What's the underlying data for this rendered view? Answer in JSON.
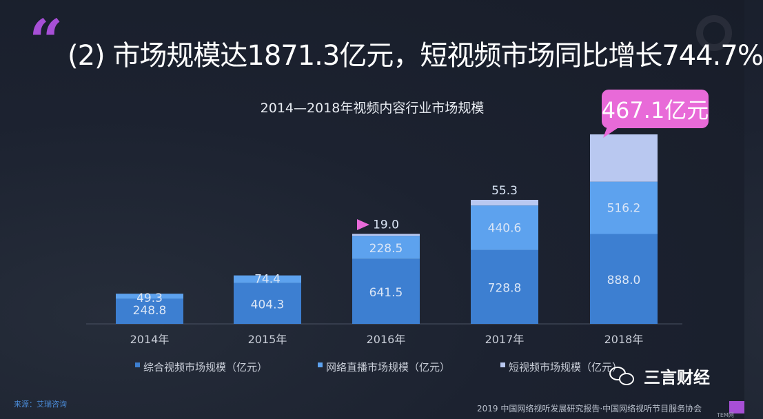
{
  "headline": "(2) 市场规模达1871.3亿元，短视频市场同比增长744.7%",
  "quote_mark": "“",
  "callout": "467.1亿元",
  "watermark": {
    "icon": "wechat-icon",
    "text": "三言财经"
  },
  "source_left": "来源：艾瑞咨询",
  "source_right": "2019 中国网络视听发展研究报告·中国网络视听节目服务协会",
  "corner_tag": "TEM网",
  "colors": {
    "series1": "#3d7fd1",
    "series2": "#5da2ee",
    "series3": "#b9c8f0",
    "callout": "#e86ad8",
    "accent": "#a74fd6"
  },
  "chart_data": {
    "type": "bar",
    "stacked": true,
    "title": "2014—2018年视频内容行业市场规模",
    "categories": [
      "2014年",
      "2015年",
      "2016年",
      "2017年",
      "2018年"
    ],
    "series": [
      {
        "name": "综合视频市场规模（亿元）",
        "values": [
          248.8,
          404.3,
          641.5,
          728.8,
          888.0
        ]
      },
      {
        "name": "网络直播市场规模（亿元）",
        "values": [
          49.3,
          74.4,
          228.5,
          440.6,
          516.2
        ]
      },
      {
        "name": "短视频市场规模（亿元）",
        "values": [
          null,
          null,
          19.0,
          55.3,
          467.1
        ]
      }
    ],
    "data_labels": [
      [
        "248.8",
        "404.3",
        "641.5",
        "728.8",
        "888.0"
      ],
      [
        "49.3",
        "74.4",
        "228.5",
        "440.6",
        "516.2"
      ],
      [
        "",
        "",
        "19.0",
        "55.3",
        ""
      ]
    ],
    "ylim": [
      0,
      1900
    ],
    "legend_position": "bottom",
    "grid": false
  }
}
